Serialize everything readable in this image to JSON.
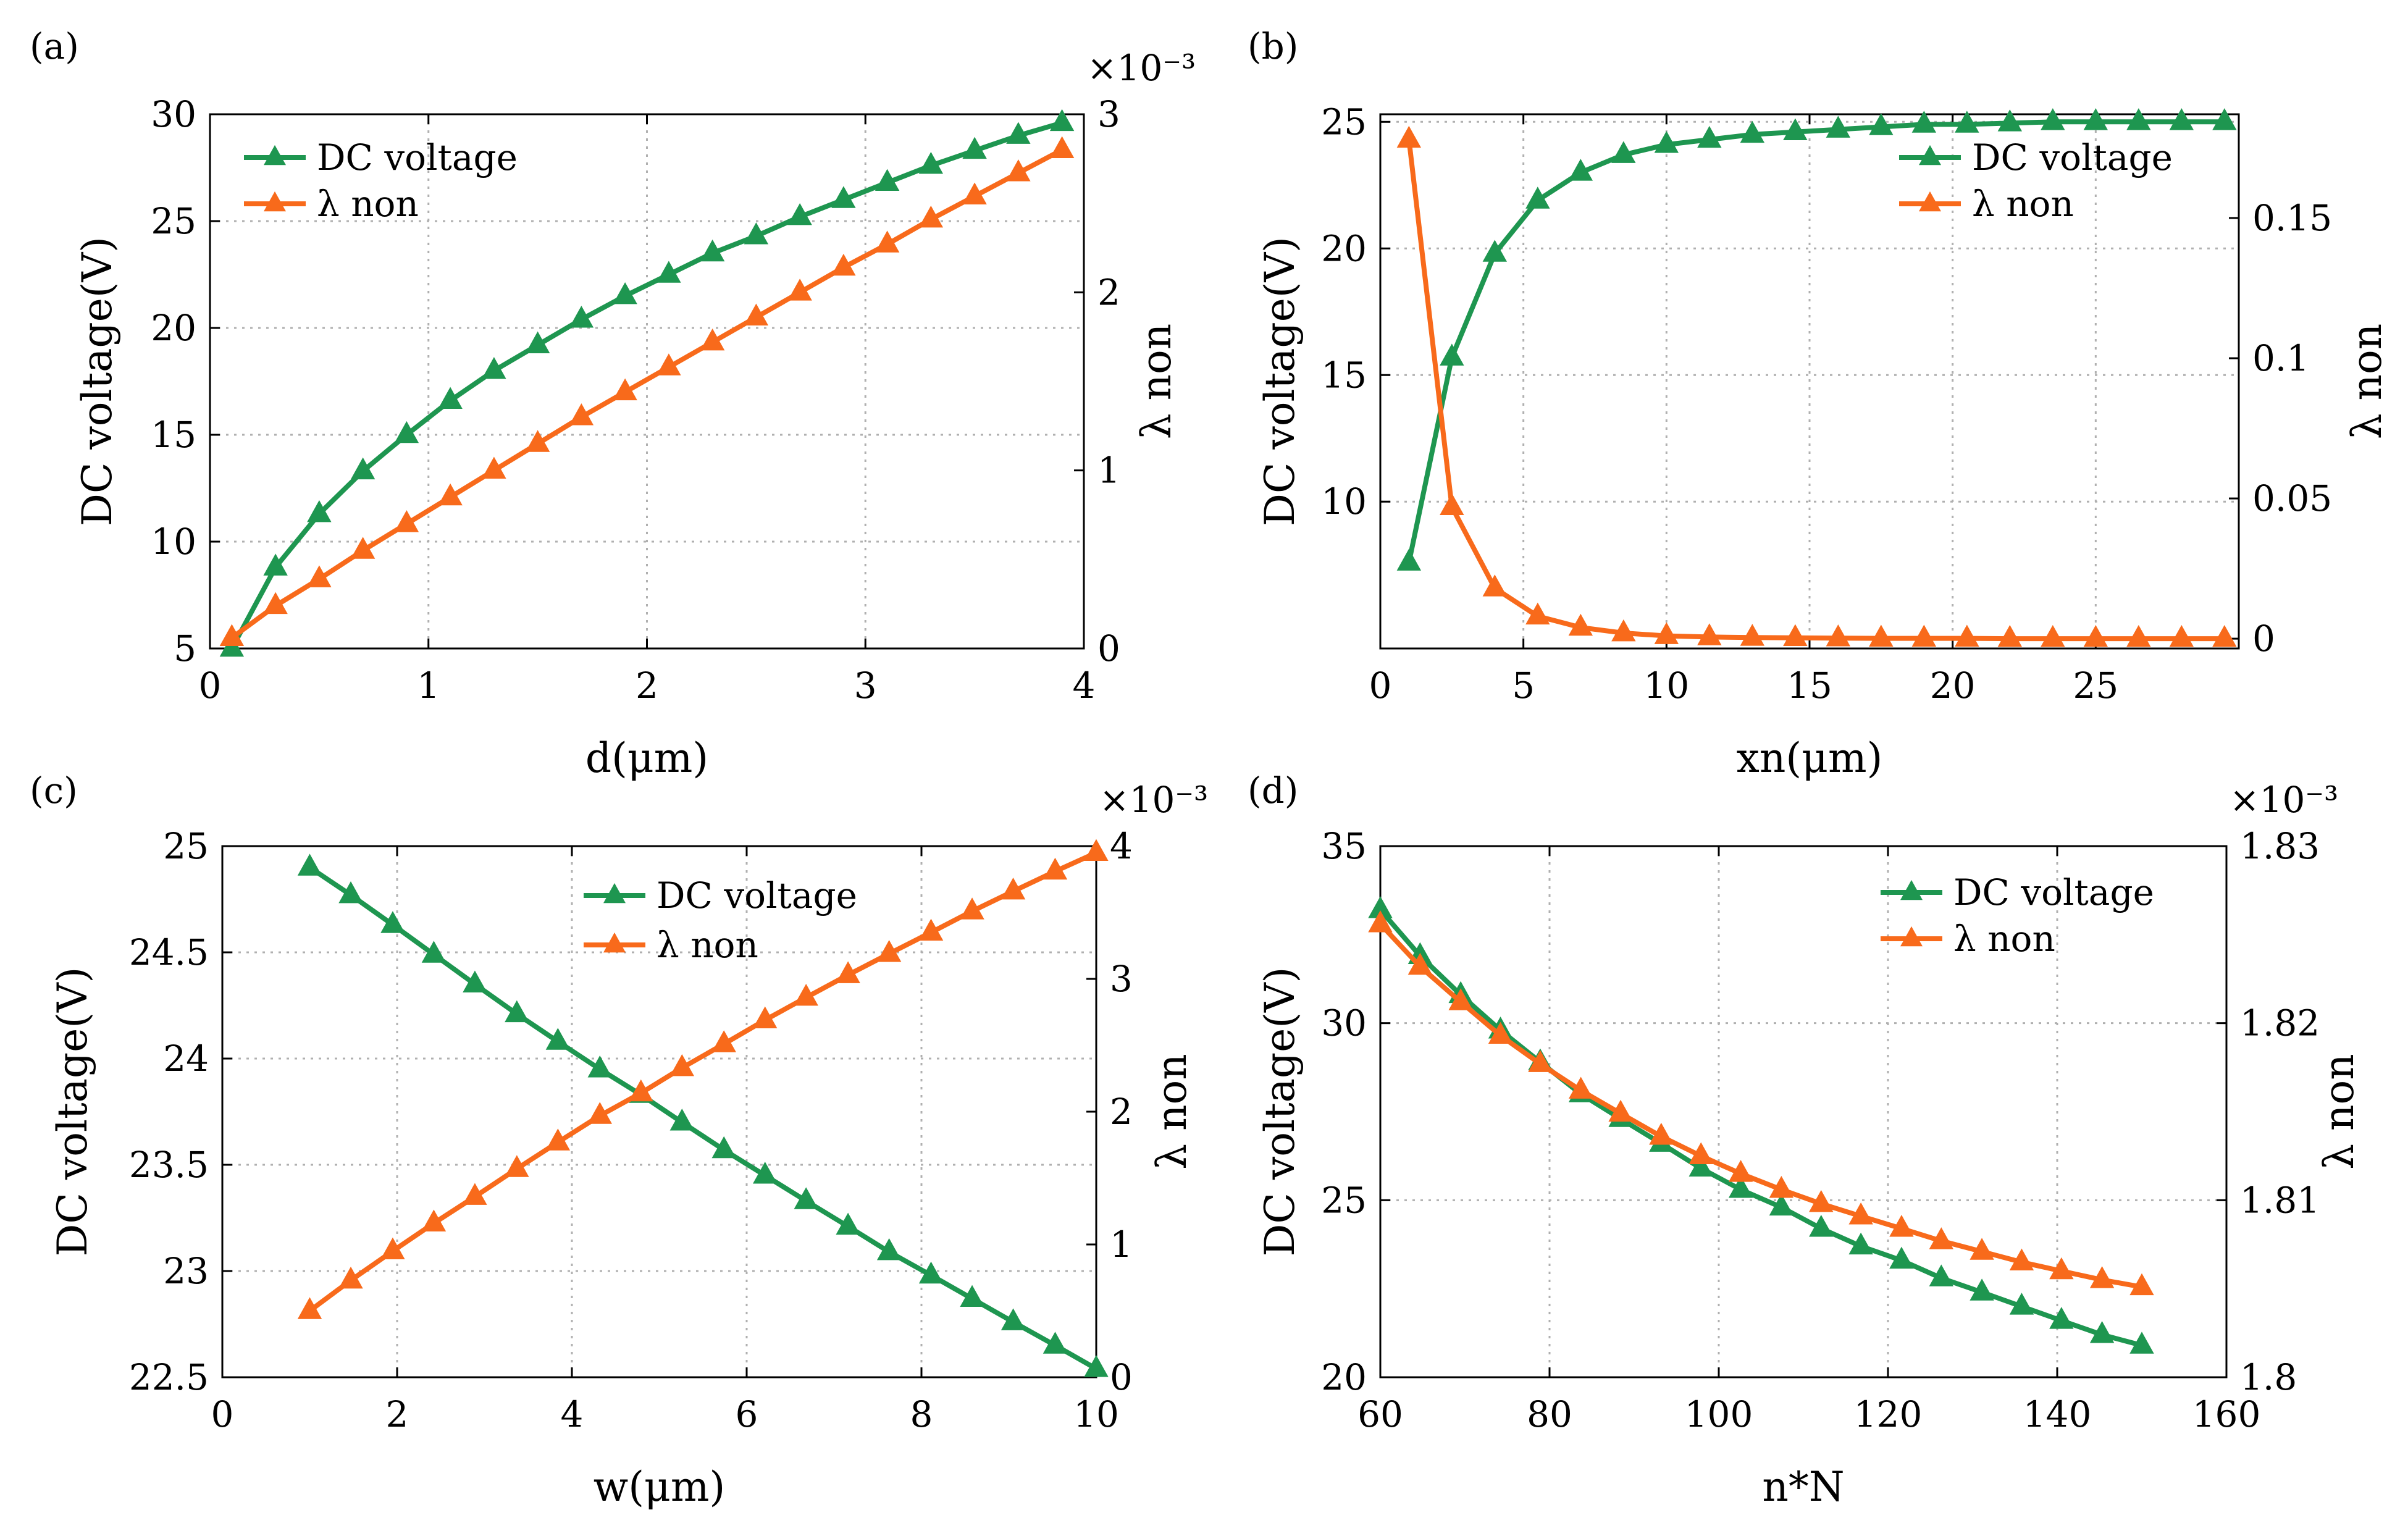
{
  "colors": {
    "green": "#1e9650",
    "orange": "#f86a1b",
    "grid": "#b0b0b0",
    "axis": "#000000"
  },
  "chart_data": [
    {
      "panel_label": "(a)",
      "type": "line",
      "xlabel": "d(μm)",
      "ylabel": "DC voltage(V)",
      "y2label": "λ non",
      "xlim": [
        0,
        4
      ],
      "ylim": [
        5,
        30
      ],
      "y2lim": [
        0,
        3
      ],
      "y2_exponent": "×10⁻³",
      "xticks": [
        0,
        1,
        2,
        3,
        4
      ],
      "xtick_labels": [
        "0",
        "1",
        "2",
        "3",
        "4"
      ],
      "yticks": [
        5,
        10,
        15,
        20,
        25,
        30
      ],
      "ytick_labels": [
        "5",
        "10",
        "15",
        "20",
        "25",
        "30"
      ],
      "y2ticks": [
        0,
        1,
        2,
        3
      ],
      "y2tick_labels": [
        "0",
        "1",
        "2",
        "3"
      ],
      "legend": {
        "placement": "top-left",
        "entries": [
          "DC voltage",
          "λ non"
        ]
      },
      "grid": true,
      "series": [
        {
          "name": "DC voltage",
          "axis": "left",
          "color": "#1e9650",
          "x": [
            0.1,
            0.3,
            0.5,
            0.7,
            0.9,
            1.1,
            1.3,
            1.5,
            1.7,
            1.9,
            2.1,
            2.3,
            2.5,
            2.7,
            2.9,
            3.1,
            3.3,
            3.5,
            3.7,
            3.9
          ],
          "y": [
            5.0,
            8.8,
            11.3,
            13.3,
            15.0,
            16.6,
            18.0,
            19.2,
            20.4,
            21.5,
            22.5,
            23.5,
            24.3,
            25.2,
            26.0,
            26.8,
            27.6,
            28.3,
            29.0,
            29.6
          ]
        },
        {
          "name": "λ non",
          "axis": "right",
          "color": "#f86a1b",
          "x": [
            0.1,
            0.3,
            0.5,
            0.7,
            0.9,
            1.1,
            1.3,
            1.5,
            1.7,
            1.9,
            2.1,
            2.3,
            2.5,
            2.7,
            2.9,
            3.1,
            3.3,
            3.5,
            3.7,
            3.9
          ],
          "y": [
            0.06,
            0.24,
            0.39,
            0.55,
            0.7,
            0.85,
            1.0,
            1.15,
            1.3,
            1.44,
            1.58,
            1.72,
            1.86,
            2.0,
            2.14,
            2.27,
            2.41,
            2.54,
            2.67,
            2.8
          ]
        }
      ]
    },
    {
      "panel_label": "(b)",
      "type": "line",
      "xlabel": "xn(μm)",
      "ylabel": "DC voltage(V)",
      "y2label": "λ non",
      "xlim": [
        0,
        30
      ],
      "ylim": [
        4.2,
        25.3
      ],
      "y2lim": [
        -0.0035,
        0.187
      ],
      "xticks": [
        0,
        5,
        10,
        15,
        20,
        25
      ],
      "xtick_labels": [
        "0",
        "5",
        "10",
        "15",
        "20",
        "25"
      ],
      "yticks": [
        10,
        15,
        20,
        25
      ],
      "ytick_labels": [
        "10",
        "15",
        "20",
        "25"
      ],
      "y2ticks": [
        0,
        0.05,
        0.1,
        0.15
      ],
      "y2tick_labels": [
        "0",
        "0.05",
        "0.1",
        "0.15"
      ],
      "legend": {
        "placement": "top-right",
        "entries": [
          "DC voltage",
          "λ non"
        ]
      },
      "grid": true,
      "series": [
        {
          "name": "DC voltage",
          "axis": "left",
          "color": "#1e9650",
          "x": [
            1,
            2.5,
            4,
            5.5,
            7,
            8.5,
            10,
            11.5,
            13,
            14.5,
            16,
            17.5,
            19,
            20.5,
            22,
            23.5,
            25,
            26.5,
            28,
            29.5
          ],
          "y": [
            7.6,
            15.7,
            19.8,
            21.9,
            23.0,
            23.7,
            24.1,
            24.3,
            24.5,
            24.6,
            24.7,
            24.8,
            24.9,
            24.9,
            24.95,
            25.0,
            25.0,
            25.0,
            25.0,
            25.0
          ]
        },
        {
          "name": "λ non",
          "axis": "right",
          "color": "#f86a1b",
          "x": [
            1,
            2.5,
            4,
            5.5,
            7,
            8.5,
            10,
            11.5,
            13,
            14.5,
            16,
            17.5,
            19,
            20.5,
            22,
            23.5,
            25,
            26.5,
            28,
            29.5
          ],
          "y": [
            0.178,
            0.047,
            0.018,
            0.008,
            0.004,
            0.002,
            0.001,
            0.0006,
            0.0004,
            0.0003,
            0.0002,
            0.0001,
            0.0001,
            0.0001,
            0,
            0,
            0,
            0,
            0,
            0
          ]
        }
      ]
    },
    {
      "panel_label": "(c)",
      "type": "line",
      "xlabel": "w(μm)",
      "ylabel": "DC voltage(V)",
      "y2label": "λ non",
      "xlim": [
        0,
        10
      ],
      "ylim": [
        22.5,
        25
      ],
      "y2lim": [
        0,
        4
      ],
      "y2_exponent": "×10⁻³",
      "xticks": [
        0,
        2,
        4,
        6,
        8,
        10
      ],
      "xtick_labels": [
        "0",
        "2",
        "4",
        "6",
        "8",
        "10"
      ],
      "yticks": [
        22.5,
        23,
        23.5,
        24,
        24.5,
        25
      ],
      "ytick_labels": [
        "22.5",
        "23",
        "23.5",
        "24",
        "24.5",
        "25"
      ],
      "y2ticks": [
        0,
        1,
        2,
        3,
        4
      ],
      "y2tick_labels": [
        "0",
        "1",
        "2",
        "3",
        "4"
      ],
      "legend": {
        "placement": "top-center",
        "entries": [
          "DC voltage",
          "λ non"
        ]
      },
      "grid": true,
      "series": [
        {
          "name": "DC voltage",
          "axis": "left",
          "color": "#1e9650",
          "x": [
            1.0,
            1.47,
            1.95,
            2.42,
            2.89,
            3.37,
            3.84,
            4.32,
            4.79,
            5.26,
            5.74,
            6.21,
            6.68,
            7.16,
            7.63,
            8.11,
            8.58,
            9.05,
            9.53,
            10.0
          ],
          "y": [
            24.9,
            24.77,
            24.63,
            24.49,
            24.35,
            24.21,
            24.08,
            23.95,
            23.83,
            23.7,
            23.57,
            23.45,
            23.33,
            23.21,
            23.09,
            22.98,
            22.87,
            22.76,
            22.65,
            22.54
          ]
        },
        {
          "name": "λ non",
          "axis": "right",
          "color": "#f86a1b",
          "x": [
            1.0,
            1.47,
            1.95,
            2.42,
            2.89,
            3.37,
            3.84,
            4.32,
            4.79,
            5.26,
            5.74,
            6.21,
            6.68,
            7.16,
            7.63,
            8.11,
            8.58,
            9.05,
            9.53,
            10.0
          ],
          "y": [
            0.5,
            0.73,
            0.95,
            1.16,
            1.36,
            1.57,
            1.77,
            1.97,
            2.14,
            2.33,
            2.51,
            2.69,
            2.86,
            3.03,
            3.19,
            3.35,
            3.51,
            3.66,
            3.81,
            3.95
          ]
        }
      ]
    },
    {
      "panel_label": "(d)",
      "type": "line",
      "xlabel": "n*N",
      "ylabel": "DC voltage(V)",
      "y2label": "λ non",
      "xlim": [
        60,
        160
      ],
      "ylim": [
        20,
        35
      ],
      "y2lim": [
        1.8,
        1.83
      ],
      "y2_exponent": "×10⁻³",
      "xticks": [
        60,
        80,
        100,
        120,
        140,
        160
      ],
      "xtick_labels": [
        "60",
        "80",
        "100",
        "120",
        "140",
        "160"
      ],
      "yticks": [
        20,
        25,
        30,
        35
      ],
      "ytick_labels": [
        "20",
        "25",
        "30",
        "35"
      ],
      "y2ticks": [
        1.8,
        1.81,
        1.82,
        1.83
      ],
      "y2tick_labels": [
        "1.8",
        "1.81",
        "1.82",
        "1.83"
      ],
      "legend": {
        "placement": "top-right",
        "entries": [
          "DC voltage",
          "λ non"
        ]
      },
      "grid": true,
      "series": [
        {
          "name": "DC voltage",
          "axis": "left",
          "color": "#1e9650",
          "x": [
            60,
            64.7,
            69.5,
            74.2,
            78.9,
            83.7,
            88.4,
            93.2,
            97.9,
            102.6,
            107.4,
            112.1,
            116.8,
            121.6,
            126.3,
            131.1,
            135.8,
            140.5,
            145.3,
            150
          ],
          "y": [
            33.2,
            31.9,
            30.8,
            29.8,
            28.9,
            28.0,
            27.3,
            26.6,
            25.9,
            25.3,
            24.8,
            24.2,
            23.7,
            23.3,
            22.8,
            22.4,
            22.0,
            21.6,
            21.2,
            20.9
          ]
        },
        {
          "name": "λ non",
          "axis": "right",
          "color": "#f86a1b",
          "x": [
            60,
            64.7,
            69.5,
            74.2,
            78.9,
            83.7,
            88.4,
            93.2,
            97.9,
            102.6,
            107.4,
            112.1,
            116.8,
            121.6,
            126.3,
            131.1,
            135.8,
            140.5,
            145.3,
            150
          ],
          "y": [
            1.8256,
            1.8232,
            1.8212,
            1.8193,
            1.8177,
            1.8162,
            1.8149,
            1.8136,
            1.8125,
            1.8115,
            1.8106,
            1.8098,
            1.8091,
            1.8084,
            1.8077,
            1.8071,
            1.8065,
            1.806,
            1.8055,
            1.8051
          ]
        }
      ]
    }
  ]
}
